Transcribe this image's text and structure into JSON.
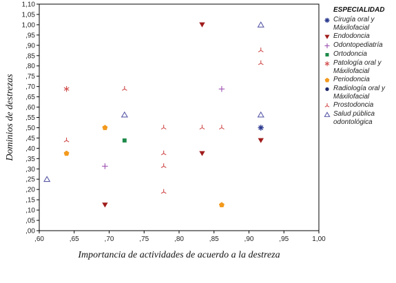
{
  "chart_data": {
    "type": "scatter",
    "title": "",
    "xlabel": "Importancia de actividades de acuerdo a la destreza",
    "ylabel": "Dominios de destrezas",
    "xlim": [
      0.6,
      1.0
    ],
    "ylim": [
      0.0,
      1.1
    ],
    "x_ticks": [
      ",60",
      ",65",
      ",70",
      ",75",
      ",80",
      ",85",
      ",90",
      ",95",
      "1,00"
    ],
    "y_ticks": [
      ",00",
      ",05",
      ",10",
      ",15",
      ",20",
      ",25",
      ",30",
      ",35",
      ",40",
      ",45",
      ",50",
      ",55",
      ",60",
      ",65",
      ",70",
      ",75",
      ",80",
      ",85",
      ",90",
      ",95",
      "1,00",
      "1,05",
      "1,10"
    ],
    "grid": false,
    "legend_title": "ESPECIALIDAD",
    "legend_position": "right",
    "series": [
      {
        "name": "Cirugía oral y Máxilofacial",
        "marker": "asterisk",
        "color": "#2b3a8f",
        "points": [
          [
            0.917,
            0.5
          ]
        ]
      },
      {
        "name": "Endodoncia",
        "marker": "triangle-down",
        "color": "#a01c1c",
        "points": [
          [
            0.833,
            1.0
          ],
          [
            0.833,
            0.375
          ],
          [
            0.694,
            0.125
          ],
          [
            0.917,
            0.438
          ]
        ]
      },
      {
        "name": "Odontopediatría",
        "marker": "plus",
        "color": "#9b4fb0",
        "points": [
          [
            0.861,
            0.688
          ],
          [
            0.694,
            0.313
          ]
        ]
      },
      {
        "name": "Ortodoncia",
        "marker": "square",
        "color": "#1e8a4a",
        "points": [
          [
            0.722,
            0.438
          ]
        ]
      },
      {
        "name": "Patología oral y Máxilofacial",
        "marker": "star",
        "color": "#d04848",
        "points": [
          [
            0.639,
            0.688
          ]
        ]
      },
      {
        "name": "Periodoncia",
        "marker": "pentagon",
        "color": "#f39a1e",
        "points": [
          [
            0.694,
            0.5
          ],
          [
            0.639,
            0.375
          ],
          [
            0.861,
            0.125
          ]
        ]
      },
      {
        "name": "Radiología oral y Máxilofacial",
        "marker": "circle",
        "color": "#1f2a6b",
        "points": []
      },
      {
        "name": "Prostodoncia",
        "marker": "tri-arms",
        "color": "#d04848",
        "points": [
          [
            0.722,
            0.688
          ],
          [
            0.778,
            0.5
          ],
          [
            0.833,
            0.5
          ],
          [
            0.861,
            0.5
          ],
          [
            0.639,
            0.438
          ],
          [
            0.778,
            0.375
          ],
          [
            0.778,
            0.313
          ],
          [
            0.778,
            0.188
          ],
          [
            0.917,
            0.875
          ],
          [
            0.917,
            0.813
          ]
        ]
      },
      {
        "name": "Salud pública odontológica",
        "marker": "triangle-up",
        "color": "#5a5aa8",
        "points": [
          [
            0.917,
            1.0
          ],
          [
            0.917,
            0.563
          ],
          [
            0.722,
            0.563
          ],
          [
            0.611,
            0.25
          ]
        ]
      }
    ]
  }
}
